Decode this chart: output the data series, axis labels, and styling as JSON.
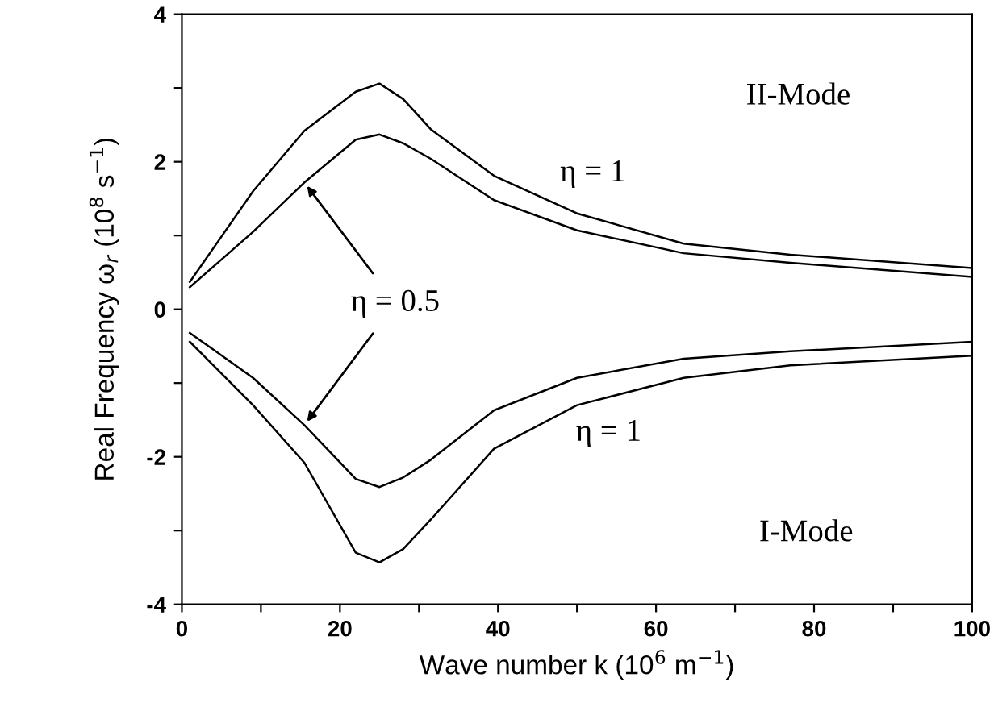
{
  "chart_data": {
    "type": "line",
    "xlabel": "Wave number k (10$^{6}$ m$^{−1}$)",
    "ylabel": "Real Frequency ω$_{r}$ (10$^{8}$ s$^{−1}$)",
    "x": [
      1,
      9,
      15.5,
      22,
      25,
      28,
      31.5,
      39.5,
      50,
      63.5,
      77,
      100
    ],
    "xlim": [
      0,
      100
    ],
    "ylim": [
      -4,
      4
    ],
    "xticks": [
      0,
      {
        "value": 10,
        "label": null
      },
      20,
      {
        "value": 30,
        "label": null
      },
      40,
      {
        "value": 50,
        "label": null
      },
      60,
      {
        "value": 70,
        "label": null
      },
      80,
      {
        "value": 90,
        "label": null
      },
      100
    ],
    "yticks": [
      -4,
      {
        "value": -3,
        "label": null
      },
      -2,
      {
        "value": -1,
        "label": null
      },
      0,
      {
        "value": 1,
        "label": null
      },
      2,
      {
        "value": 3,
        "label": null
      },
      4
    ],
    "series": [
      {
        "color": "#000000",
        "values": [
          0.37,
          1.6,
          2.42,
          2.95,
          3.06,
          2.85,
          2.44,
          1.81,
          1.3,
          0.89,
          0.74,
          0.56
        ]
      },
      {
        "color": "#000000",
        "values": [
          0.3,
          1.05,
          1.72,
          2.3,
          2.37,
          2.25,
          2.04,
          1.48,
          1.07,
          0.76,
          0.63,
          0.44
        ]
      },
      {
        "color": "#000000",
        "values": [
          -0.32,
          -0.93,
          -1.57,
          -2.3,
          -2.41,
          -2.28,
          -2.04,
          -1.37,
          -0.93,
          -0.67,
          -0.57,
          -0.44
        ]
      },
      {
        "color": "#000000",
        "values": [
          -0.44,
          -1.3,
          -2.08,
          -3.3,
          -3.43,
          -3.25,
          -2.85,
          -1.89,
          -1.3,
          -0.93,
          -0.76,
          -0.63
        ]
      }
    ],
    "annotations": [
      "II-Mode",
      "η = 1",
      {
        "text": "η = 0.5",
        "x": 15.5,
        "y": 1.72
      },
      "η = 1",
      "I-Mode"
    ],
    "grid": false,
    "legend": false,
    "marker": "none",
    "line_style": "solid"
  }
}
